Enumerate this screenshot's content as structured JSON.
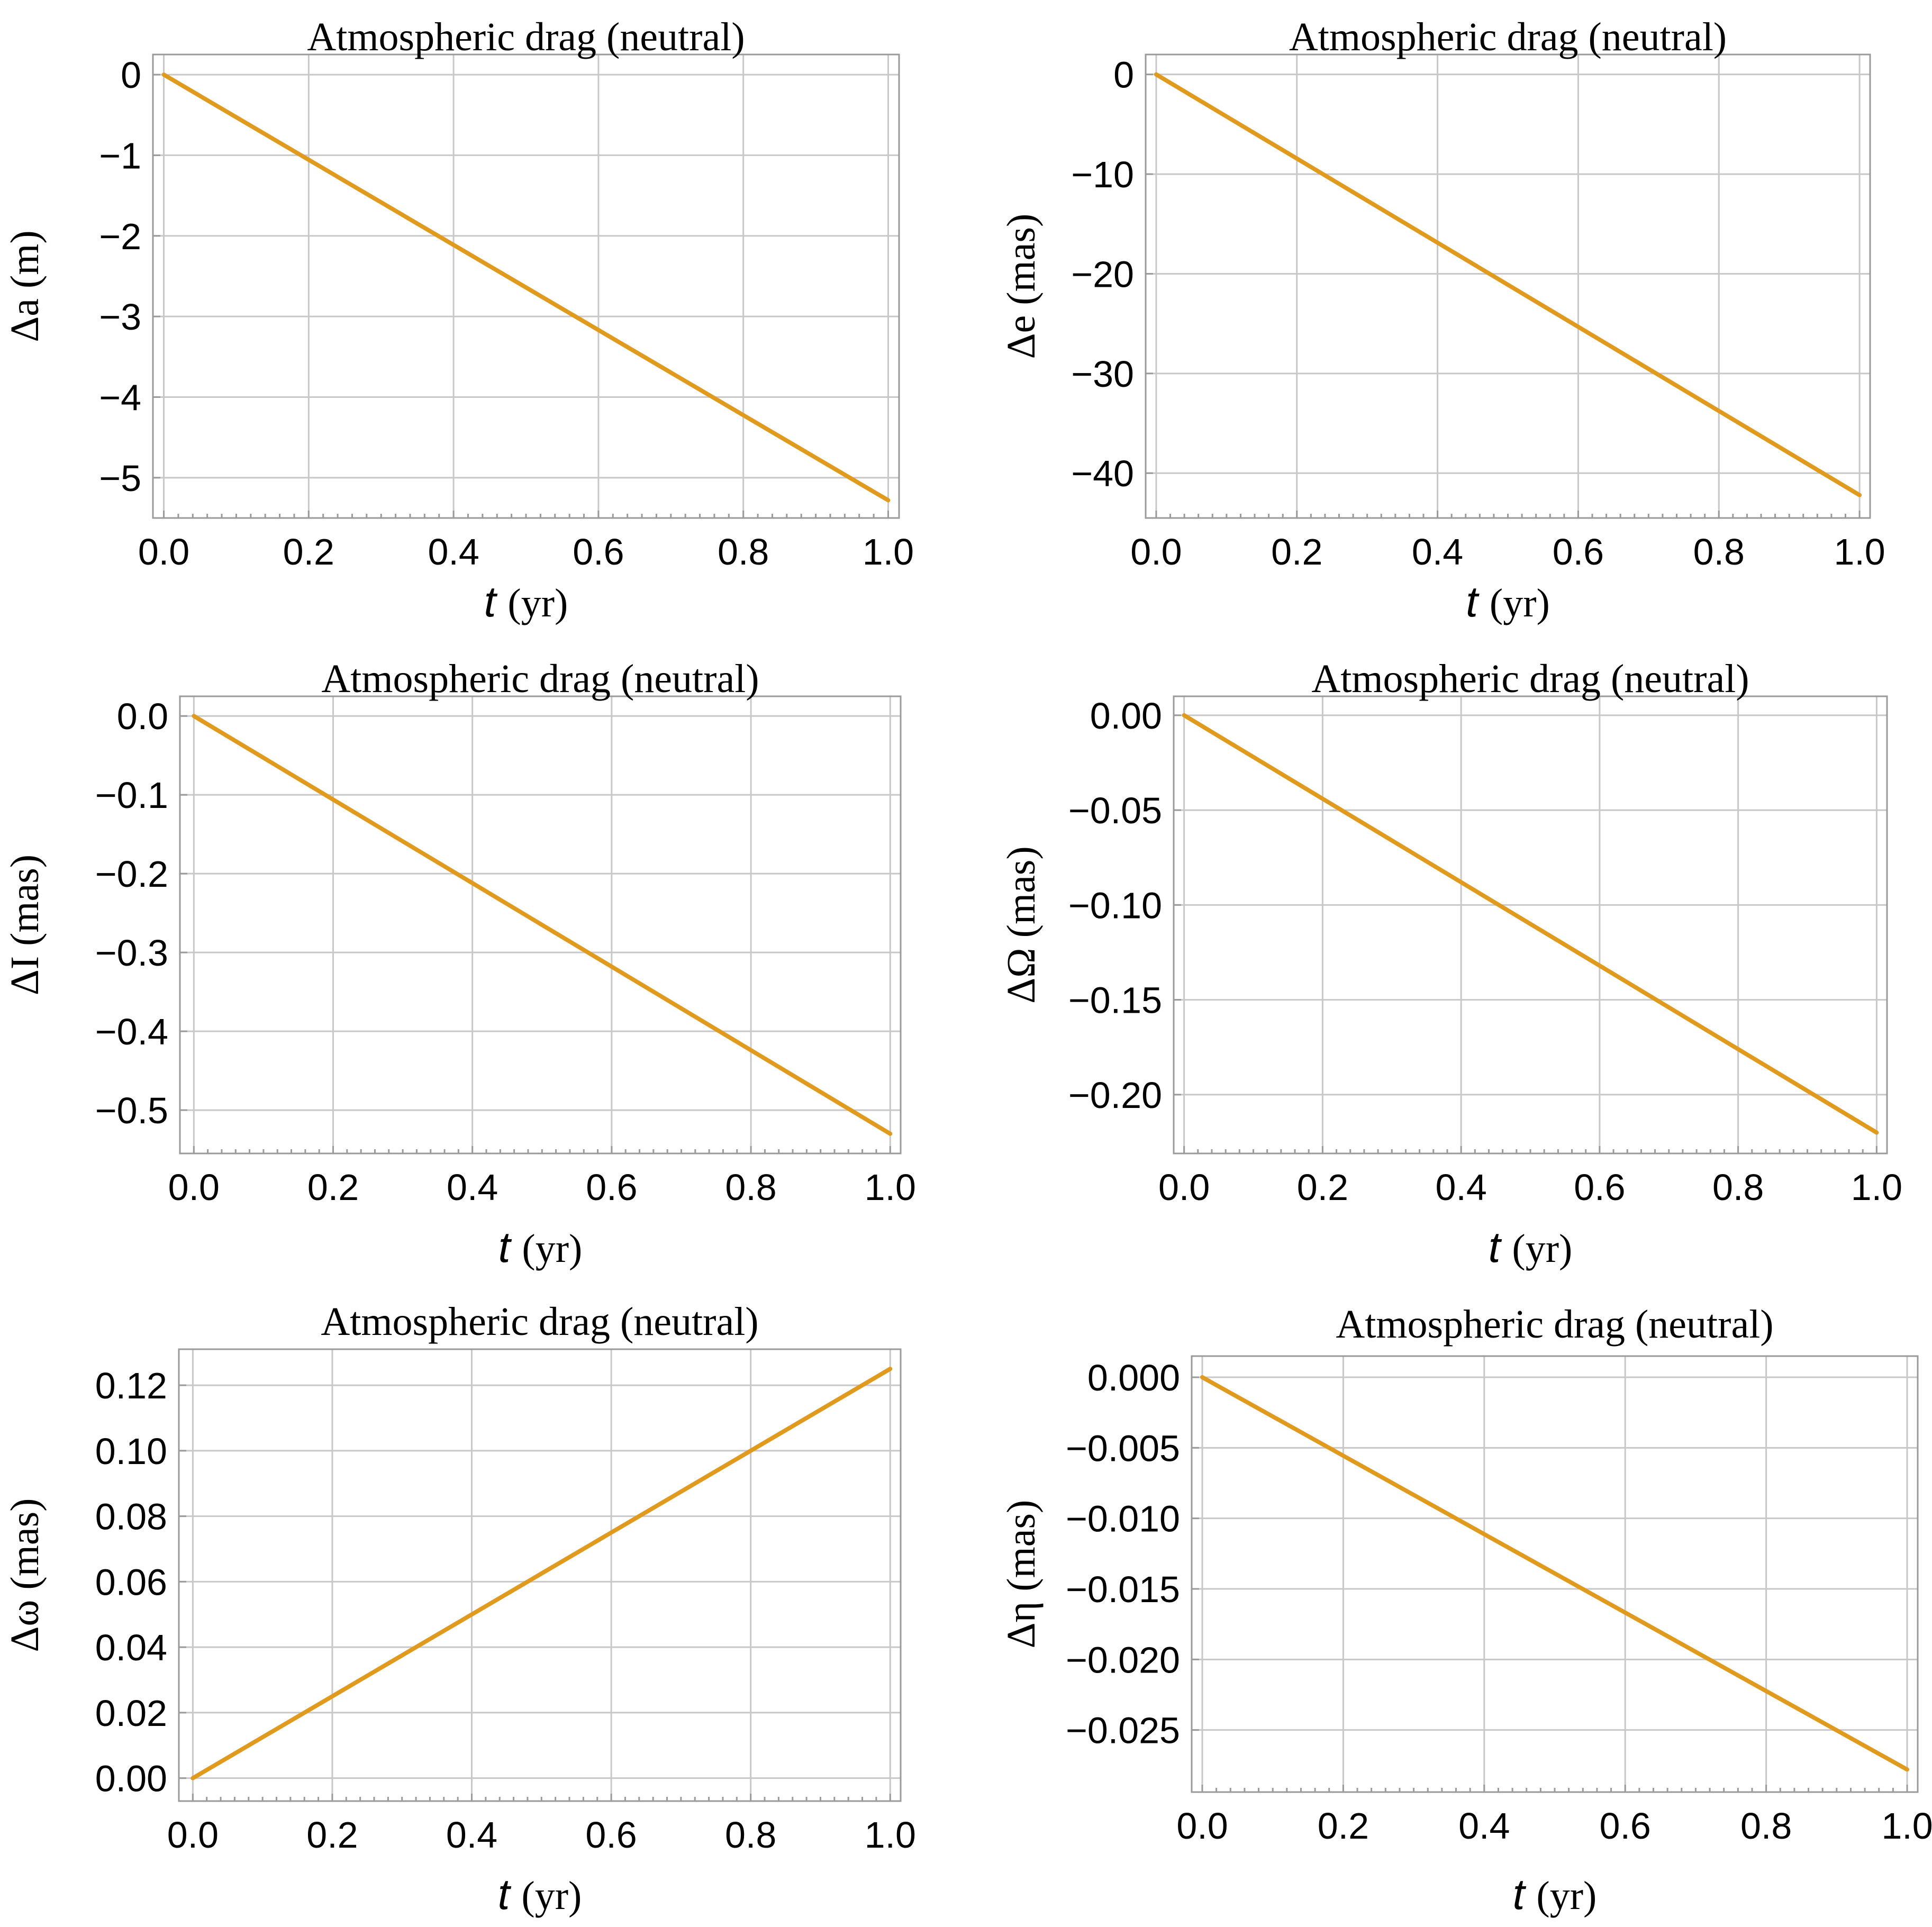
{
  "chart_data": [
    {
      "type": "line",
      "title": "Atmospheric drag (neutral)",
      "xlabel_var": "t",
      "xlabel_unit": "(yr)",
      "ylabel": "Δa (m)",
      "xlim": [
        -0.015,
        1.015
      ],
      "ylim": [
        -5.5,
        0.25
      ],
      "xticks": [
        "0.0",
        "0.2",
        "0.4",
        "0.6",
        "0.8",
        "1.0"
      ],
      "yticks": [
        "0",
        "−1",
        "−2",
        "−3",
        "−4",
        "−5"
      ],
      "yticks_values": [
        0,
        -1,
        -2,
        -3,
        -4,
        -5
      ],
      "series": [
        {
          "name": "Δa",
          "x": [
            0,
            1
          ],
          "y": [
            0,
            -5.28
          ]
        }
      ],
      "color": "#e09a1e"
    },
    {
      "type": "line",
      "title": "Atmospheric drag (neutral)",
      "xlabel_var": "t",
      "xlabel_unit": "(yr)",
      "ylabel": "Δe (mas)",
      "xlim": [
        -0.015,
        1.015
      ],
      "ylim": [
        -44.5,
        2
      ],
      "xticks": [
        "0.0",
        "0.2",
        "0.4",
        "0.6",
        "0.8",
        "1.0"
      ],
      "yticks": [
        "0",
        "−10",
        "−20",
        "−30",
        "−40"
      ],
      "yticks_values": [
        0,
        -10,
        -20,
        -30,
        -40
      ],
      "series": [
        {
          "name": "Δe",
          "x": [
            0,
            1
          ],
          "y": [
            0,
            -42.2
          ]
        }
      ],
      "color": "#e09a1e"
    },
    {
      "type": "line",
      "title": "Atmospheric drag (neutral)",
      "xlabel_var": "t",
      "xlabel_unit": "(yr)",
      "ylabel": "ΔI (mas)",
      "xlim": [
        -0.02,
        1.015
      ],
      "ylim": [
        -0.555,
        0.025
      ],
      "xticks": [
        "0.0",
        "0.2",
        "0.4",
        "0.6",
        "0.8",
        "1.0"
      ],
      "yticks": [
        "0.0",
        "−0.1",
        "−0.2",
        "−0.3",
        "−0.4",
        "−0.5"
      ],
      "yticks_values": [
        0,
        -0.1,
        -0.2,
        -0.3,
        -0.4,
        -0.5
      ],
      "series": [
        {
          "name": "ΔI",
          "x": [
            0,
            1
          ],
          "y": [
            0,
            -0.53
          ]
        }
      ],
      "color": "#e09a1e"
    },
    {
      "type": "line",
      "title": "Atmospheric drag (neutral)",
      "xlabel_var": "t",
      "xlabel_unit": "(yr)",
      "ylabel": "ΔΩ (mas)",
      "xlim": [
        -0.015,
        1.015
      ],
      "ylim": [
        -0.231,
        0.01
      ],
      "xticks": [
        "0.0",
        "0.2",
        "0.4",
        "0.6",
        "0.8",
        "1.0"
      ],
      "yticks": [
        "0.00",
        "−0.05",
        "−0.10",
        "−0.15",
        "−0.20"
      ],
      "yticks_values": [
        0,
        -0.05,
        -0.1,
        -0.15,
        -0.2
      ],
      "series": [
        {
          "name": "ΔΩ",
          "x": [
            0,
            1
          ],
          "y": [
            0,
            -0.22
          ]
        }
      ],
      "color": "#e09a1e"
    },
    {
      "type": "line",
      "title": "Atmospheric drag (neutral)",
      "xlabel_var": "t",
      "xlabel_unit": "(yr)",
      "ylabel": "Δω (mas)",
      "xlim": [
        -0.02,
        1.015
      ],
      "ylim": [
        -0.007,
        0.131
      ],
      "xticks": [
        "0.0",
        "0.2",
        "0.4",
        "0.6",
        "0.8",
        "1.0"
      ],
      "yticks": [
        "0.00",
        "0.02",
        "0.04",
        "0.06",
        "0.08",
        "0.10",
        "0.12"
      ],
      "yticks_values": [
        0,
        0.02,
        0.04,
        0.06,
        0.08,
        0.1,
        0.12
      ],
      "series": [
        {
          "name": "Δω",
          "x": [
            0,
            1
          ],
          "y": [
            0,
            0.125
          ]
        }
      ],
      "color": "#e09a1e"
    },
    {
      "type": "line",
      "title": "Atmospheric drag (neutral)",
      "xlabel_var": "t",
      "xlabel_unit": "(yr)",
      "ylabel": "Δη (mas)",
      "xlim": [
        -0.015,
        1.015
      ],
      "ylim": [
        -0.0294,
        0.0015
      ],
      "xticks": [
        "0.0",
        "0.2",
        "0.4",
        "0.6",
        "0.8",
        "1.0"
      ],
      "yticks": [
        "0.000",
        "−0.005",
        "−0.010",
        "−0.015",
        "−0.020",
        "−0.025"
      ],
      "yticks_values": [
        0,
        -0.005,
        -0.01,
        -0.015,
        -0.02,
        -0.025
      ],
      "series": [
        {
          "name": "Δη",
          "x": [
            0,
            1
          ],
          "y": [
            0,
            -0.0278
          ]
        }
      ],
      "color": "#e09a1e"
    }
  ]
}
